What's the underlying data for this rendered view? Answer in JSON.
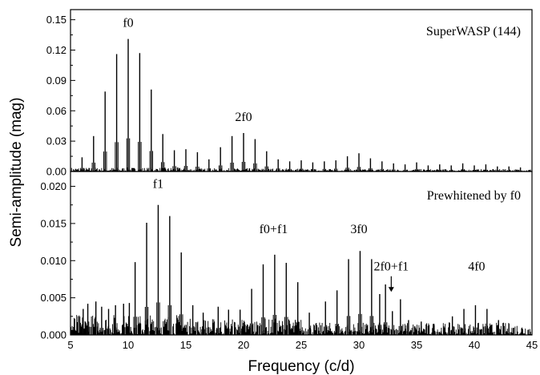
{
  "chart_data": [
    {
      "type": "line",
      "panel": "top",
      "annotation_panel": "SuperWASP (144)",
      "xlim": [
        5,
        45
      ],
      "ylim": [
        0,
        0.16
      ],
      "yticks": [
        "0.00",
        "0.03",
        "0.06",
        "0.09",
        "0.12",
        "0.15"
      ],
      "ytick_values": [
        0,
        0.03,
        0.06,
        0.09,
        0.12,
        0.15
      ],
      "peaks": [
        {
          "x": 6.0,
          "y": 0.014
        },
        {
          "x": 7.0,
          "y": 0.035
        },
        {
          "x": 8.0,
          "y": 0.079
        },
        {
          "x": 9.0,
          "y": 0.116
        },
        {
          "x": 10.0,
          "y": 0.131
        },
        {
          "x": 11.0,
          "y": 0.117
        },
        {
          "x": 12.0,
          "y": 0.081
        },
        {
          "x": 13.0,
          "y": 0.037
        },
        {
          "x": 14.0,
          "y": 0.021
        },
        {
          "x": 15.0,
          "y": 0.022
        },
        {
          "x": 16.0,
          "y": 0.019
        },
        {
          "x": 17.0,
          "y": 0.012
        },
        {
          "x": 18.0,
          "y": 0.024
        },
        {
          "x": 19.0,
          "y": 0.035
        },
        {
          "x": 20.0,
          "y": 0.038
        },
        {
          "x": 21.0,
          "y": 0.032
        },
        {
          "x": 22.0,
          "y": 0.02
        },
        {
          "x": 23.0,
          "y": 0.012
        },
        {
          "x": 24.0,
          "y": 0.01
        },
        {
          "x": 25.0,
          "y": 0.011
        },
        {
          "x": 26.0,
          "y": 0.009
        },
        {
          "x": 27.0,
          "y": 0.01
        },
        {
          "x": 28.0,
          "y": 0.011
        },
        {
          "x": 29.0,
          "y": 0.015
        },
        {
          "x": 30.0,
          "y": 0.018
        },
        {
          "x": 31.0,
          "y": 0.013
        },
        {
          "x": 32.0,
          "y": 0.01
        },
        {
          "x": 33.0,
          "y": 0.008
        },
        {
          "x": 34.0,
          "y": 0.007
        },
        {
          "x": 35.0,
          "y": 0.009
        },
        {
          "x": 36.0,
          "y": 0.006
        },
        {
          "x": 37.0,
          "y": 0.007
        },
        {
          "x": 38.0,
          "y": 0.006
        },
        {
          "x": 39.0,
          "y": 0.008
        },
        {
          "x": 40.0,
          "y": 0.006
        },
        {
          "x": 41.0,
          "y": 0.007
        },
        {
          "x": 42.0,
          "y": 0.005
        },
        {
          "x": 43.0,
          "y": 0.005
        },
        {
          "x": 44.0,
          "y": 0.004
        }
      ],
      "noise_level": 0.004,
      "peak_labels": [
        {
          "text": "f0",
          "x": 10.0,
          "y": 0.143
        },
        {
          "text": "2f0",
          "x": 20.0,
          "y": 0.05
        }
      ]
    },
    {
      "type": "line",
      "panel": "bottom",
      "annotation_panel": "Prewhitened by f0",
      "xlim": [
        5,
        45
      ],
      "ylim": [
        0,
        0.022
      ],
      "xlabel": "Frequency (c/d)",
      "xticks": [
        "5",
        "10",
        "15",
        "20",
        "25",
        "30",
        "35",
        "40",
        "45"
      ],
      "xtick_values": [
        5,
        10,
        15,
        20,
        25,
        30,
        35,
        40,
        45
      ],
      "yticks": [
        "0.000",
        "0.005",
        "0.010",
        "0.015",
        "0.020"
      ],
      "ytick_values": [
        0,
        0.005,
        0.01,
        0.015,
        0.02
      ],
      "peaks": [
        {
          "x": 6.1,
          "y": 0.0035
        },
        {
          "x": 6.5,
          "y": 0.0042
        },
        {
          "x": 7.2,
          "y": 0.0045
        },
        {
          "x": 7.7,
          "y": 0.0038
        },
        {
          "x": 8.3,
          "y": 0.0035
        },
        {
          "x": 8.9,
          "y": 0.004
        },
        {
          "x": 9.6,
          "y": 0.0042
        },
        {
          "x": 10.1,
          "y": 0.0043
        },
        {
          "x": 10.6,
          "y": 0.0098
        },
        {
          "x": 11.6,
          "y": 0.0151
        },
        {
          "x": 12.6,
          "y": 0.0175
        },
        {
          "x": 13.6,
          "y": 0.016
        },
        {
          "x": 14.6,
          "y": 0.0111
        },
        {
          "x": 15.6,
          "y": 0.004
        },
        {
          "x": 16.5,
          "y": 0.003
        },
        {
          "x": 17.8,
          "y": 0.0038
        },
        {
          "x": 18.7,
          "y": 0.0034
        },
        {
          "x": 19.7,
          "y": 0.0034
        },
        {
          "x": 20.7,
          "y": 0.0062
        },
        {
          "x": 21.7,
          "y": 0.0095
        },
        {
          "x": 22.7,
          "y": 0.0108
        },
        {
          "x": 23.7,
          "y": 0.0097
        },
        {
          "x": 24.7,
          "y": 0.0071
        },
        {
          "x": 25.7,
          "y": 0.003
        },
        {
          "x": 27.1,
          "y": 0.0045
        },
        {
          "x": 28.1,
          "y": 0.006
        },
        {
          "x": 29.1,
          "y": 0.0102
        },
        {
          "x": 30.1,
          "y": 0.0113
        },
        {
          "x": 31.1,
          "y": 0.0102
        },
        {
          "x": 31.8,
          "y": 0.0055
        },
        {
          "x": 32.3,
          "y": 0.0068
        },
        {
          "x": 32.9,
          "y": 0.0032
        },
        {
          "x": 33.6,
          "y": 0.0048
        },
        {
          "x": 34.3,
          "y": 0.002
        },
        {
          "x": 35.4,
          "y": 0.0018
        },
        {
          "x": 36.5,
          "y": 0.0015
        },
        {
          "x": 38.1,
          "y": 0.0025
        },
        {
          "x": 39.1,
          "y": 0.0035
        },
        {
          "x": 40.1,
          "y": 0.004
        },
        {
          "x": 41.1,
          "y": 0.0035
        },
        {
          "x": 42.1,
          "y": 0.002
        },
        {
          "x": 43.0,
          "y": 0.0015
        }
      ],
      "noise_level": 0.0028,
      "peak_labels": [
        {
          "text": "f1",
          "x": 12.6,
          "y": 0.0198
        },
        {
          "text": "f0+f1",
          "x": 22.6,
          "y": 0.0137
        },
        {
          "text": "3f0",
          "x": 30.0,
          "y": 0.0137
        },
        {
          "text": "2f0+f1",
          "x": 32.8,
          "y": 0.0087
        },
        {
          "text": "4f0",
          "x": 40.2,
          "y": 0.0087
        }
      ],
      "arrow": {
        "x": 32.8,
        "y_from": 0.0079,
        "y_to": 0.0058
      }
    }
  ],
  "shared_ylabel": "Semi-amplitude (mag)"
}
